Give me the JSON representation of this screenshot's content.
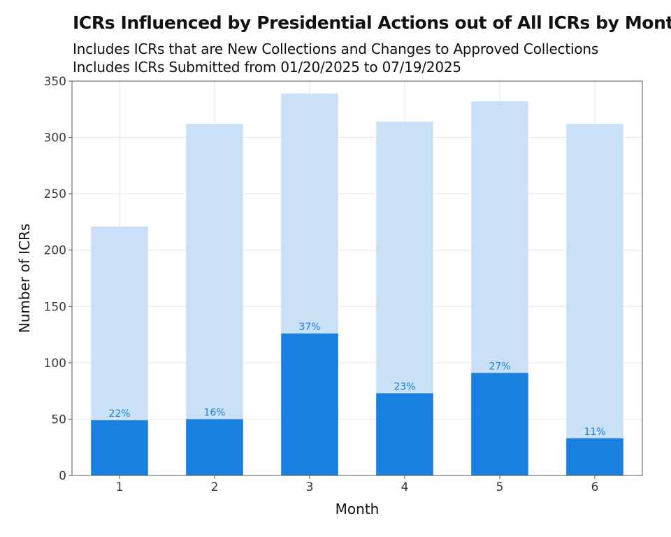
{
  "chart_data": {
    "type": "bar",
    "title": "ICRs Influenced by Presidential Actions out of All ICRs by Month",
    "subtitle_lines": [
      "Includes ICRs that are New Collections and Changes to Approved Collections",
      "Includes ICRs Submitted from 01/20/2025 to 07/19/2025"
    ],
    "xlabel": "Month",
    "ylabel": "Number of ICRs",
    "categories": [
      "1",
      "2",
      "3",
      "4",
      "5",
      "6"
    ],
    "series": [
      {
        "values": [
          221,
          312,
          339,
          314,
          332,
          312
        ]
      },
      {
        "values": [
          49,
          50,
          126,
          73,
          91,
          33
        ]
      }
    ],
    "bar_labels": [
      "22%",
      "16%",
      "37%",
      "23%",
      "27%",
      "11%"
    ],
    "ylim": [
      0,
      350
    ],
    "yticks": [
      0,
      50,
      100,
      150,
      200,
      250,
      300,
      350
    ],
    "grid": true,
    "colors": {
      "total": "#c9e0f6",
      "influenced": "#1a80e0",
      "label": "#1a80e0",
      "grid": "#e6e6e6",
      "frame": "#555555"
    }
  }
}
